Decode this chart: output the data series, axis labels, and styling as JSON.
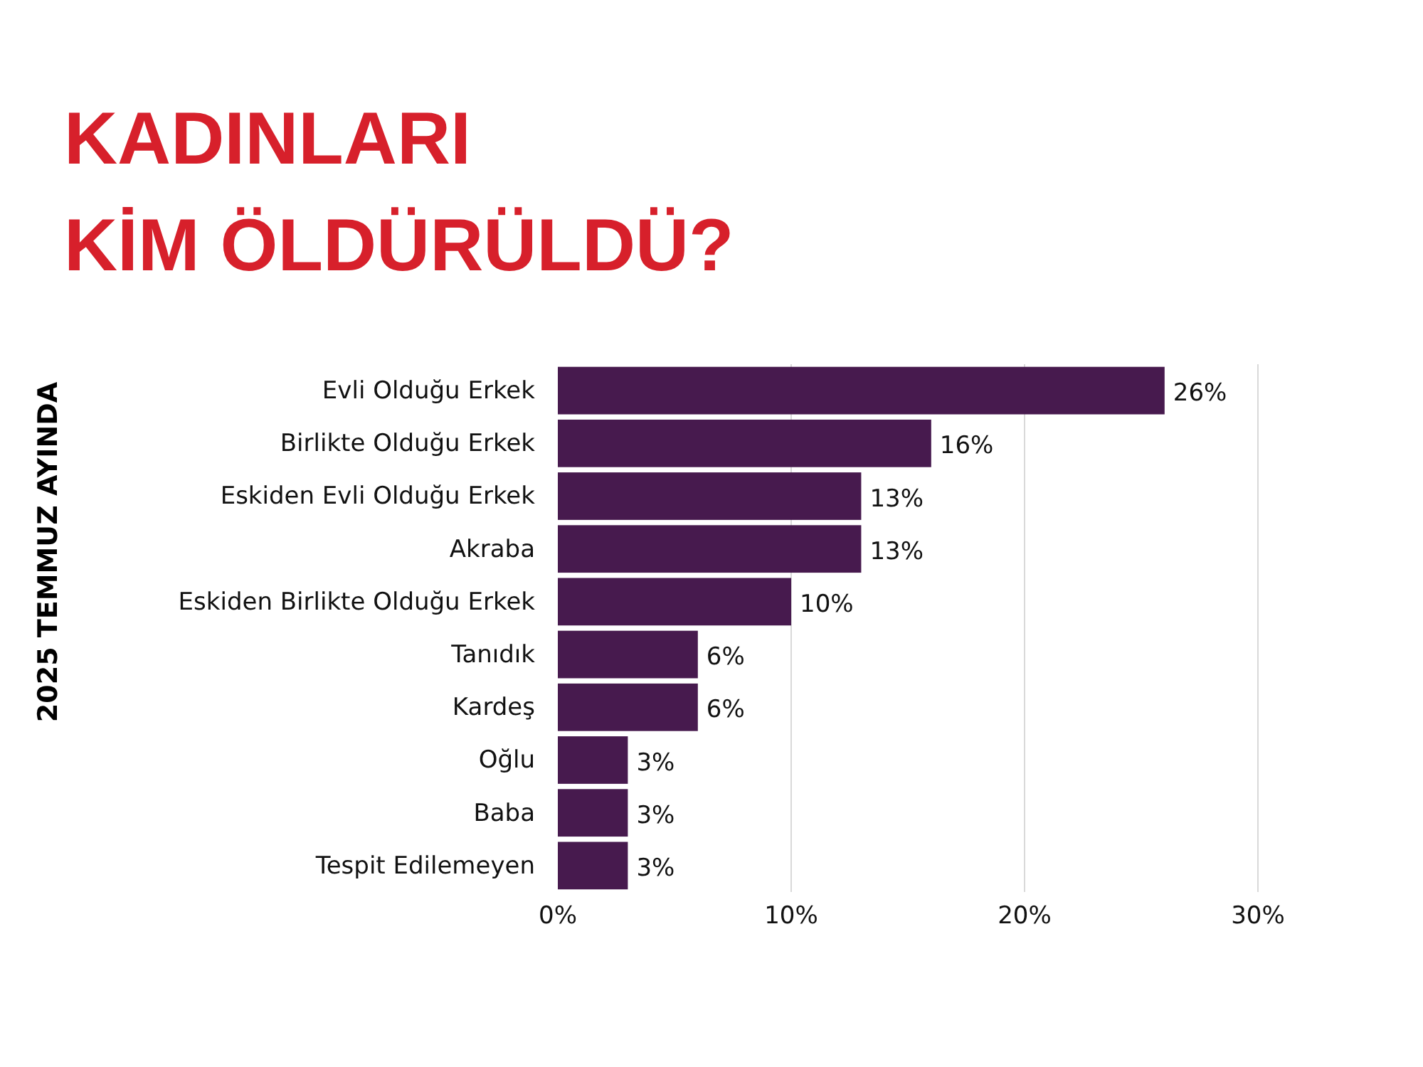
{
  "chart_data": {
    "type": "bar",
    "orientation": "horizontal",
    "title": "KADINLARI\nKİM ÖLDÜRÜLDÜ?",
    "ylabel": "2025 TEMMUZ AYINDA",
    "categories": [
      "Evli Olduğu Erkek",
      "Birlikte Olduğu Erkek",
      "Eskiden Evli Olduğu Erkek",
      "Akraba",
      "Eskiden Birlikte Olduğu Erkek",
      "Tanıdık",
      "Kardeş",
      "Oğlu",
      "Baba",
      "Tespit Edilemeyen"
    ],
    "values": [
      26,
      16,
      13,
      13,
      10,
      6,
      6,
      3,
      3,
      3
    ],
    "color": "#471a4e",
    "value_labels": [
      "26%",
      "16%",
      "13%",
      "13%",
      "10%",
      "6%",
      "6%",
      "3%",
      "3%",
      "3%"
    ],
    "xlim": [
      0,
      30
    ],
    "xticks": [
      {
        "value": 0,
        "label": "0%"
      },
      {
        "value": 10,
        "label": "10%"
      },
      {
        "value": 20,
        "label": "20%"
      },
      {
        "value": 30,
        "label": "30%"
      }
    ],
    "grid": "x"
  }
}
